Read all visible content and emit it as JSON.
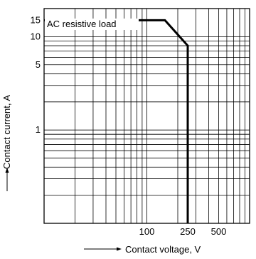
{
  "chart_data": {
    "type": "line",
    "title": "",
    "xlabel": "Contact voltage, V",
    "ylabel": "Contact current, A",
    "x_scale": "log",
    "y_scale": "log",
    "xlim": [
      10,
      1000
    ],
    "ylim": [
      0.1,
      20
    ],
    "x_ticks": [
      {
        "value": 100,
        "label": "100"
      },
      {
        "value": 250,
        "label": "250"
      },
      {
        "value": 500,
        "label": "500"
      }
    ],
    "y_ticks": [
      {
        "value": 1,
        "label": "1"
      },
      {
        "value": 5,
        "label": "5"
      },
      {
        "value": 10,
        "label": "10"
      },
      {
        "value": 15,
        "label": "15"
      }
    ],
    "grid": true,
    "annotation": "AC resistive load",
    "series": [
      {
        "name": "AC resistive load",
        "color": "#000000",
        "points": [
          {
            "x": 10,
            "y": 15
          },
          {
            "x": 150,
            "y": 15
          },
          {
            "x": 250,
            "y": 8
          },
          {
            "x": 250,
            "y": 0.1
          }
        ]
      }
    ]
  }
}
